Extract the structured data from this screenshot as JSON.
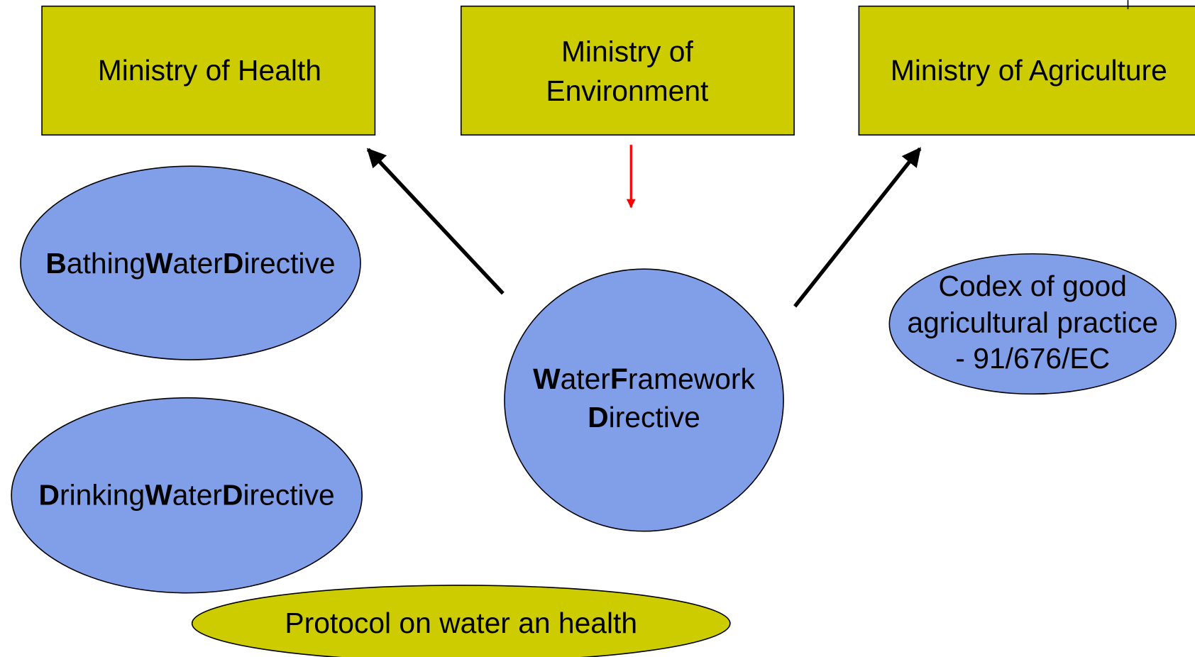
{
  "nodes": [
    {
      "lines": [
        [
          {
            "text": "Ministry of Health"
          }
        ]
      ]
    },
    {
      "lines": [
        [
          {
            "text": "Ministry of"
          }
        ],
        [
          {
            "text": "Environment"
          }
        ]
      ]
    },
    {
      "lines": [
        [
          {
            "text": "Ministry of Agriculture"
          }
        ]
      ]
    },
    {
      "lines": [
        [
          {
            "text": "B",
            "bold": true
          },
          {
            "text": "athing"
          },
          {
            "text": "W",
            "bold": true
          },
          {
            "text": "ater"
          },
          {
            "text": "D",
            "bold": true
          },
          {
            "text": "irective"
          }
        ]
      ]
    },
    {
      "lines": [
        [
          {
            "text": "D",
            "bold": true
          },
          {
            "text": "rinking"
          },
          {
            "text": "W",
            "bold": true
          },
          {
            "text": "ater"
          },
          {
            "text": "D",
            "bold": true
          },
          {
            "text": "irective"
          }
        ]
      ]
    },
    {
      "lines": [
        [
          {
            "text": "W",
            "bold": true
          },
          {
            "text": "ater"
          },
          {
            "text": "F",
            "bold": true
          },
          {
            "text": "ramework"
          }
        ],
        [
          {
            "text": "D",
            "bold": true
          },
          {
            "text": "irective"
          }
        ]
      ]
    },
    {
      "lines": [
        [
          {
            "text": "Codex of good"
          }
        ],
        [
          {
            "text": "agricultural practice"
          }
        ],
        [
          {
            "text": "- 91/676/EC"
          }
        ]
      ]
    },
    {
      "lines": [
        [
          {
            "text": "Protocol on water an health"
          }
        ]
      ]
    }
  ]
}
